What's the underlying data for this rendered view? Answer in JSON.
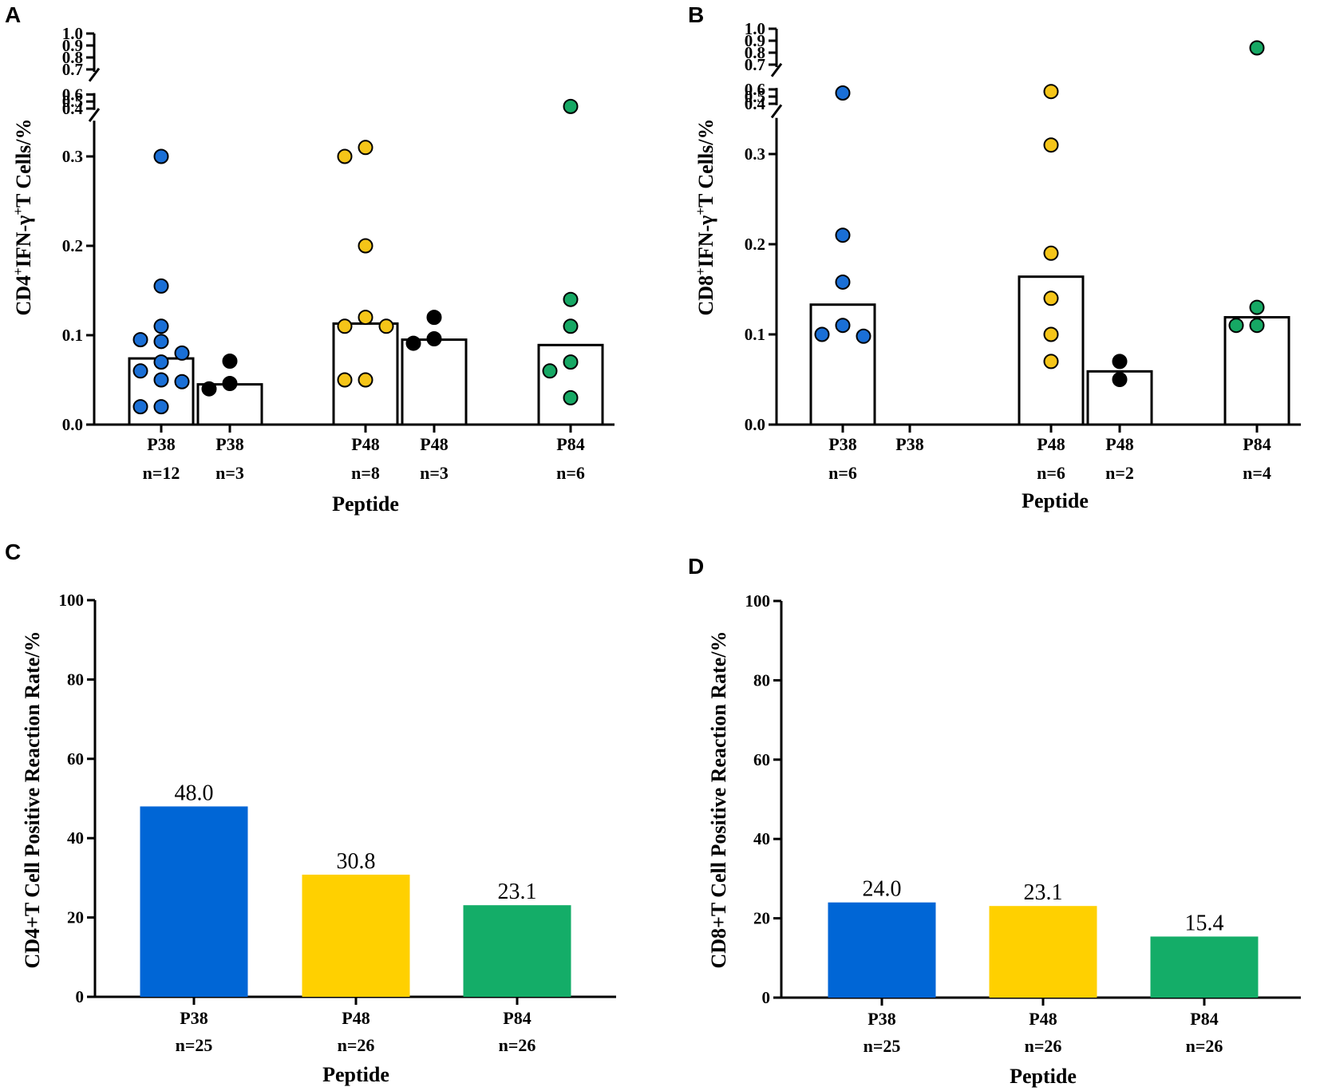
{
  "chart_data": [
    {
      "panel": "A",
      "type": "scatter",
      "ylabel": {
        "base1": "CD4",
        "sup1": "+",
        "base2": "IFN-γ",
        "sup2": "+",
        "base3": "T Cells/%"
      },
      "xlabel": "Peptide",
      "y_ticks_lower": [
        "0.0",
        "0.1",
        "0.2",
        "0.3"
      ],
      "y_ticks_upper": [
        "0.4",
        "0.5",
        "0.6",
        "0.7",
        "0.8",
        "0.9",
        "1.0"
      ],
      "y_breaks": [
        [
          0.34,
          0.38
        ],
        [
          0.62,
          0.68
        ]
      ],
      "groups": [
        {
          "label": "P38",
          "n": "n=12",
          "color": "#1a6fd6",
          "bar": 0.074,
          "points": [
            0.3,
            0.155,
            0.11,
            0.095,
            0.093,
            0.08,
            0.07,
            0.06,
            0.05,
            0.048,
            0.02,
            0.02
          ]
        },
        {
          "label": "P38",
          "n": "n=3",
          "color": "#000000",
          "bar": 0.045,
          "points": [
            0.071,
            0.046,
            0.04
          ]
        },
        {
          "label": "P48",
          "n": "n=8",
          "color": "#f5c518",
          "bar": 0.113,
          "points": [
            0.31,
            0.3,
            0.2,
            0.12,
            0.11,
            0.11,
            0.05,
            0.05
          ]
        },
        {
          "label": "P48",
          "n": "n=3",
          "color": "#000000",
          "bar": 0.095,
          "points": [
            0.12,
            0.096,
            0.091
          ]
        },
        {
          "label": "P84",
          "n": "n=6",
          "color": "#16a864",
          "bar": 0.089,
          "points": [
            0.43,
            0.14,
            0.11,
            0.07,
            0.06,
            0.03
          ]
        }
      ]
    },
    {
      "panel": "B",
      "type": "scatter",
      "ylabel": {
        "base1": "CD8",
        "sup1": "+",
        "base2": "IFN-γ",
        "sup2": "+",
        "base3": "T Cells/%"
      },
      "xlabel": "Peptide",
      "y_ticks_lower": [
        "0.0",
        "0.1",
        "0.2",
        "0.3"
      ],
      "y_ticks_upper": [
        "0.4",
        "0.5",
        "0.6",
        "0.7",
        "0.8",
        "0.9",
        "1.0"
      ],
      "y_breaks": [
        [
          0.34,
          0.38
        ],
        [
          0.62,
          0.68
        ]
      ],
      "groups": [
        {
          "label": "P38",
          "n": "n=6",
          "color": "#1a6fd6",
          "bar": 0.133,
          "points": [
            0.55,
            0.21,
            0.158,
            0.11,
            0.1,
            0.098
          ]
        },
        {
          "label": "P38",
          "n": "",
          "color": "#000000",
          "bar": null,
          "points": []
        },
        {
          "label": "P48",
          "n": "n=6",
          "color": "#f5c518",
          "bar": 0.164,
          "points": [
            0.57,
            0.31,
            0.19,
            0.14,
            0.1,
            0.07
          ]
        },
        {
          "label": "P48",
          "n": "n=2",
          "color": "#000000",
          "bar": 0.059,
          "points": [
            0.07,
            0.05
          ]
        },
        {
          "label": "P84",
          "n": "n=4",
          "color": "#16a864",
          "bar": 0.119,
          "points": [
            0.84,
            0.13,
            0.11,
            0.11
          ]
        }
      ]
    },
    {
      "panel": "C",
      "type": "bar",
      "ylabel": "CD4+T Cell Positive Reaction Rate/%",
      "xlabel": "Peptide",
      "ylim": [
        0,
        100
      ],
      "y_ticks": [
        "0",
        "20",
        "40",
        "60",
        "80",
        "100"
      ],
      "categories": [
        "P38",
        "P48",
        "P84"
      ],
      "n_labels": [
        "n=25",
        "n=26",
        "n=26"
      ],
      "values": [
        48.0,
        30.8,
        23.1
      ],
      "value_labels": [
        "48.0",
        "30.8",
        "23.1"
      ],
      "colors": [
        "#0066d6",
        "#ffd000",
        "#14ad68"
      ]
    },
    {
      "panel": "D",
      "type": "bar",
      "ylabel": "CD8+T Cell Positive Reaction Rate/%",
      "xlabel": "Peptide",
      "ylim": [
        0,
        100
      ],
      "y_ticks": [
        "0",
        "20",
        "40",
        "60",
        "80",
        "100"
      ],
      "categories": [
        "P38",
        "P48",
        "P84"
      ],
      "n_labels": [
        "n=25",
        "n=26",
        "n=26"
      ],
      "values": [
        24.0,
        23.1,
        15.4
      ],
      "value_labels": [
        "24.0",
        "23.1",
        "15.4"
      ],
      "colors": [
        "#0066d6",
        "#ffd000",
        "#14ad68"
      ]
    }
  ]
}
